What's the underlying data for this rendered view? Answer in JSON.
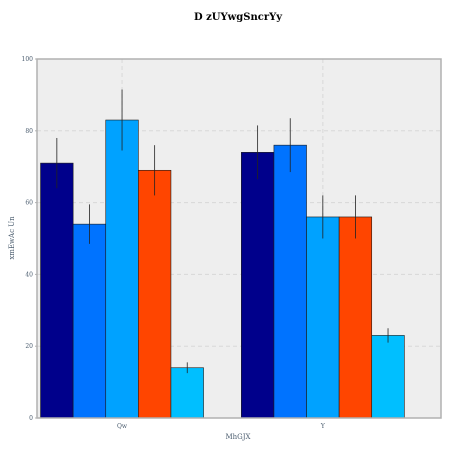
{
  "chart_data": {
    "type": "bar",
    "title": "D zUYwgSncrYy",
    "xlabel": "MhGJX",
    "ylabel": "xmEwAc Un",
    "categories": [
      "Qw",
      "Y"
    ],
    "ylim": [
      0,
      100
    ],
    "yticks": [
      "0",
      "20",
      "40",
      "60",
      "80",
      "100"
    ],
    "grid": true,
    "legend": "none",
    "series": [
      {
        "color": "#00008b",
        "values": [
          71,
          74
        ],
        "errors": [
          7,
          7.5
        ]
      },
      {
        "color": "#0073ff",
        "values": [
          54,
          76
        ],
        "errors": [
          5.5,
          7.5
        ]
      },
      {
        "color": "#00a2ff",
        "values": [
          83,
          56
        ],
        "errors": [
          8.5,
          6
        ]
      },
      {
        "color": "#ff4500",
        "values": [
          69,
          56
        ],
        "errors": [
          7,
          6
        ]
      },
      {
        "color": "#00bfff",
        "values": [
          14,
          23
        ],
        "errors": [
          1.5,
          2
        ]
      }
    ]
  }
}
